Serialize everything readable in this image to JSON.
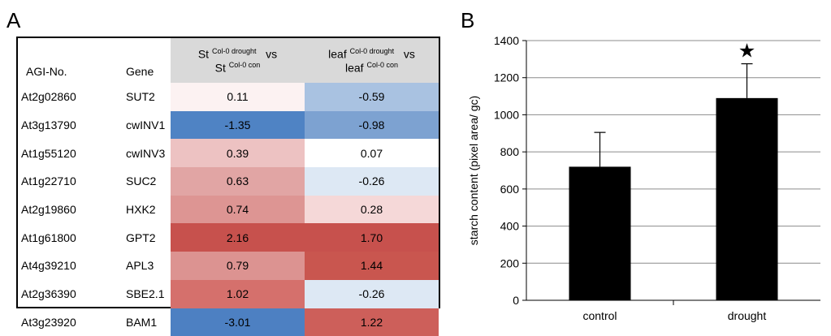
{
  "panel_labels": {
    "a": "A",
    "b": "B"
  },
  "table": {
    "headers": {
      "agi": "AGI-No.",
      "gene": "Gene",
      "st_line1_prefix": "St",
      "st_line1_sup": "Col-0 drought",
      "vs": "vs",
      "st_line2_prefix": "St",
      "st_line2_sup": "Col-0 con",
      "leaf_line1_prefix": "leaf",
      "leaf_line1_sup": "Col-0 drought",
      "leaf_line2_prefix": "leaf",
      "leaf_line2_sup": "Col-0 con"
    },
    "rows": [
      {
        "agi": "At2g02860",
        "gene": "SUT2",
        "st": "0.11",
        "leaf": "-0.59",
        "st_color": "#fcf2f2",
        "leaf_color": "#a9c2e1"
      },
      {
        "agi": "At3g13790",
        "gene": "cwINV1",
        "st": "-1.35",
        "leaf": "-0.98",
        "st_color": "#4f83c4",
        "leaf_color": "#7da2d1"
      },
      {
        "agi": "At1g55120",
        "gene": "cwINV3",
        "st": "0.39",
        "leaf": "0.07",
        "st_color": "#edc2c2",
        "leaf_color": "#ffffff"
      },
      {
        "agi": "At1g22710",
        "gene": "SUC2",
        "st": "0.63",
        "leaf": "-0.26",
        "st_color": "#e1a5a4",
        "leaf_color": "#dde8f4"
      },
      {
        "agi": "At2g19860",
        "gene": "HXK2",
        "st": "0.74",
        "leaf": "0.28",
        "st_color": "#dd9593",
        "leaf_color": "#f5d8d8"
      },
      {
        "agi": "At1g61800",
        "gene": "GPT2",
        "st": "2.16",
        "leaf": "1.70",
        "st_color": "#c7514d",
        "leaf_color": "#c7514d"
      },
      {
        "agi": "At4g39210",
        "gene": "APL3",
        "st": "0.79",
        "leaf": "1.44",
        "st_color": "#dc9391",
        "leaf_color": "#c9564f"
      },
      {
        "agi": "At2g36390",
        "gene": "SBE2.1",
        "st": "1.02",
        "leaf": "-0.26",
        "st_color": "#d5706c",
        "leaf_color": "#dde8f4"
      },
      {
        "agi": "At3g23920",
        "gene": "BAM1",
        "st": "-3.01",
        "leaf": "1.22",
        "st_color": "#4d80c2",
        "leaf_color": "#cd5f5a"
      }
    ]
  },
  "chart_data": {
    "type": "bar",
    "categories": [
      "control",
      "drought"
    ],
    "values": [
      720,
      1090
    ],
    "error": [
      185,
      185
    ],
    "significance": [
      "",
      "★"
    ],
    "ylabel": "starch content (pixel area/ gc)",
    "xlabel": "",
    "ylim": [
      0,
      1400
    ],
    "yticks": [
      0,
      200,
      400,
      600,
      800,
      1000,
      1200,
      1400
    ],
    "grid": true,
    "bar_color": "#000000",
    "grid_color": "#8c8c8c"
  }
}
